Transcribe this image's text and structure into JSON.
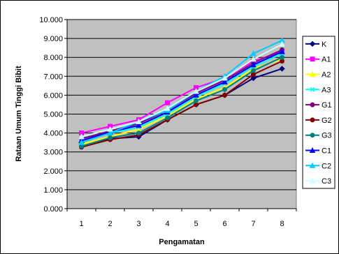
{
  "chart_data": {
    "type": "line",
    "title": "",
    "xlabel": "Pengamatan",
    "ylabel": "Rataan Umum Tinggi Bibit",
    "x": [
      1,
      2,
      3,
      4,
      5,
      6,
      7,
      8
    ],
    "x_tick_labels": [
      "1",
      "2",
      "3",
      "4",
      "5",
      "6",
      "7",
      "8"
    ],
    "ylim": [
      0,
      10
    ],
    "y_ticks": [
      0,
      1,
      2,
      3,
      4,
      5,
      6,
      7,
      8,
      9,
      10
    ],
    "y_tick_labels": [
      "0.000",
      "1.000",
      "2.000",
      "3.000",
      "4.000",
      "5.000",
      "6.000",
      "7.000",
      "8.000",
      "9.000",
      "10.000"
    ],
    "grid": true,
    "legend_position": "right",
    "series": [
      {
        "name": "K",
        "color": "#000080",
        "marker": "diamond",
        "values": [
          3.3,
          3.7,
          3.8,
          4.7,
          5.5,
          6.0,
          6.9,
          7.4
        ]
      },
      {
        "name": "A1",
        "color": "#ff00ff",
        "marker": "square",
        "values": [
          4.0,
          4.35,
          4.7,
          5.6,
          6.4,
          6.9,
          7.8,
          8.3
        ]
      },
      {
        "name": "A2",
        "color": "#ffff00",
        "marker": "triangle",
        "values": [
          3.4,
          3.8,
          4.2,
          4.9,
          5.8,
          6.4,
          7.4,
          7.9
        ]
      },
      {
        "name": "A3",
        "color": "#00ffff",
        "marker": "x",
        "values": [
          3.6,
          4.0,
          4.3,
          5.0,
          5.9,
          6.6,
          7.5,
          8.2
        ]
      },
      {
        "name": "G1",
        "color": "#800080",
        "marker": "circle",
        "values": [
          3.7,
          4.1,
          4.5,
          5.2,
          6.1,
          6.8,
          7.7,
          8.4
        ]
      },
      {
        "name": "G2",
        "color": "#800000",
        "marker": "circle",
        "values": [
          3.25,
          3.65,
          3.9,
          4.7,
          5.5,
          6.0,
          7.1,
          7.8
        ]
      },
      {
        "name": "G3",
        "color": "#008080",
        "marker": "circle",
        "values": [
          3.3,
          3.75,
          4.0,
          4.8,
          5.7,
          6.3,
          7.3,
          8.0
        ]
      },
      {
        "name": "C1",
        "color": "#0000ff",
        "marker": "triangle",
        "values": [
          3.6,
          4.05,
          4.4,
          5.1,
          6.0,
          6.7,
          7.6,
          8.3
        ]
      },
      {
        "name": "C2",
        "color": "#00ccff",
        "marker": "triangle",
        "values": [
          3.5,
          4.0,
          4.6,
          5.2,
          6.2,
          7.0,
          8.2,
          8.9
        ]
      },
      {
        "name": "C3",
        "color": "#ccffff",
        "marker": "triangle",
        "values": [
          3.8,
          4.2,
          4.6,
          5.3,
          6.2,
          6.9,
          7.9,
          8.7
        ]
      }
    ]
  }
}
